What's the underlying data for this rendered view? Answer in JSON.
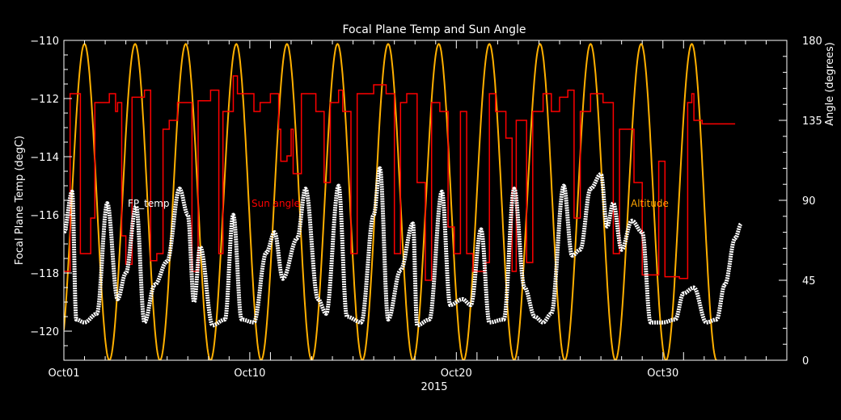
{
  "chart_data": {
    "type": "line",
    "title": "Focal Plane Temp and Sun Angle",
    "xlabel": "2015",
    "ylabel_left": "Focal Plane Temp (degC)",
    "ylabel_right": "Angle (degrees)",
    "x_range_days": [
      1,
      36
    ],
    "x_ticks": [
      {
        "day": 1,
        "label": "Oct01"
      },
      {
        "day": 10,
        "label": "Oct10"
      },
      {
        "day": 20,
        "label": "Oct20"
      },
      {
        "day": 30,
        "label": "Oct30"
      }
    ],
    "ylim_left": [
      -121,
      -110
    ],
    "yticks_left": [
      -110,
      -112,
      -114,
      -116,
      -118,
      -120
    ],
    "ylim_right": [
      0,
      180
    ],
    "yticks_right": [
      0,
      45,
      90,
      135,
      180
    ],
    "grid": false,
    "legend_labels": [
      {
        "text": "FP_temp",
        "color": "#ffffff"
      },
      {
        "text": "Sun angle",
        "color": "#ff0000"
      },
      {
        "text": "Altitude",
        "color": "#ffa500"
      }
    ],
    "colors": {
      "fp_temp": "#ffffff",
      "sun_angle": "#ff0000",
      "altitude": "#ffb000",
      "axes": "#ffffff",
      "background": "#000000"
    },
    "series": [
      {
        "name": "FP_temp",
        "axis": "left",
        "approximate_daily_extremes": [
          [
            1.0,
            -116.6
          ],
          [
            1.4,
            -115.2
          ],
          [
            1.6,
            -119.6
          ],
          [
            2.0,
            -119.7
          ],
          [
            2.6,
            -119.4
          ],
          [
            3.1,
            -115.6
          ],
          [
            3.6,
            -118.9
          ],
          [
            4.0,
            -118.0
          ],
          [
            4.5,
            -115.7
          ],
          [
            4.9,
            -119.7
          ],
          [
            5.4,
            -118.4
          ],
          [
            6.0,
            -117.6
          ],
          [
            6.6,
            -115.1
          ],
          [
            7.0,
            -116.0
          ],
          [
            7.3,
            -119.0
          ],
          [
            7.6,
            -117.1
          ],
          [
            8.2,
            -119.8
          ],
          [
            8.8,
            -119.6
          ],
          [
            9.2,
            -116.0
          ],
          [
            9.6,
            -119.6
          ],
          [
            10.2,
            -119.7
          ],
          [
            10.8,
            -117.3
          ],
          [
            11.2,
            -116.6
          ],
          [
            11.6,
            -118.2
          ],
          [
            12.3,
            -116.8
          ],
          [
            12.7,
            -115.1
          ],
          [
            13.3,
            -118.9
          ],
          [
            13.7,
            -119.4
          ],
          [
            14.3,
            -115.0
          ],
          [
            14.7,
            -119.5
          ],
          [
            15.4,
            -119.7
          ],
          [
            16.0,
            -116.0
          ],
          [
            16.3,
            -114.4
          ],
          [
            16.7,
            -119.6
          ],
          [
            17.3,
            -117.9
          ],
          [
            17.9,
            -116.3
          ],
          [
            18.1,
            -119.8
          ],
          [
            18.7,
            -119.6
          ],
          [
            19.3,
            -115.2
          ],
          [
            19.7,
            -119.1
          ],
          [
            20.3,
            -118.9
          ],
          [
            20.7,
            -119.1
          ],
          [
            21.2,
            -116.5
          ],
          [
            21.6,
            -119.7
          ],
          [
            22.3,
            -119.6
          ],
          [
            22.8,
            -115.1
          ],
          [
            23.3,
            -118.5
          ],
          [
            23.8,
            -119.5
          ],
          [
            24.2,
            -119.7
          ],
          [
            24.6,
            -119.4
          ],
          [
            25.2,
            -115.0
          ],
          [
            25.6,
            -117.4
          ],
          [
            26.0,
            -117.2
          ],
          [
            26.5,
            -115.1
          ],
          [
            27.0,
            -114.6
          ],
          [
            27.3,
            -116.4
          ],
          [
            27.6,
            -115.6
          ],
          [
            28.0,
            -117.2
          ],
          [
            28.5,
            -116.2
          ],
          [
            29.0,
            -116.6
          ],
          [
            29.4,
            -119.7
          ],
          [
            30.0,
            -119.7
          ],
          [
            30.6,
            -119.6
          ],
          [
            31.0,
            -118.7
          ],
          [
            31.5,
            -118.5
          ],
          [
            32.1,
            -119.7
          ],
          [
            32.6,
            -119.6
          ],
          [
            33.0,
            -118.4
          ],
          [
            33.5,
            -116.8
          ],
          [
            33.8,
            -116.3
          ]
        ]
      },
      {
        "name": "Sun angle",
        "axis": "right",
        "step_points": [
          [
            1.0,
            50
          ],
          [
            1.3,
            150
          ],
          [
            1.6,
            150
          ],
          [
            1.8,
            60
          ],
          [
            2.1,
            60
          ],
          [
            2.3,
            80
          ],
          [
            2.4,
            80
          ],
          [
            2.5,
            145
          ],
          [
            3.1,
            145
          ],
          [
            3.2,
            150
          ],
          [
            3.3,
            150
          ],
          [
            3.5,
            140
          ],
          [
            3.6,
            145
          ],
          [
            3.7,
            145
          ],
          [
            3.8,
            70
          ],
          [
            3.9,
            70
          ],
          [
            4.0,
            54
          ],
          [
            4.2,
            54
          ],
          [
            4.3,
            148
          ],
          [
            4.8,
            148
          ],
          [
            4.9,
            152
          ],
          [
            5.0,
            152
          ],
          [
            5.2,
            56
          ],
          [
            5.4,
            56
          ],
          [
            5.5,
            60
          ],
          [
            5.7,
            60
          ],
          [
            5.8,
            130
          ],
          [
            6.0,
            130
          ],
          [
            6.1,
            135
          ],
          [
            6.4,
            135
          ],
          [
            6.5,
            145
          ],
          [
            7.0,
            145
          ],
          [
            7.2,
            50
          ],
          [
            7.4,
            50
          ],
          [
            7.5,
            146
          ],
          [
            8.0,
            146
          ],
          [
            8.1,
            152
          ],
          [
            8.3,
            152
          ],
          [
            8.5,
            60
          ],
          [
            8.6,
            60
          ],
          [
            8.7,
            140
          ],
          [
            9.1,
            140
          ],
          [
            9.2,
            160
          ],
          [
            9.3,
            160
          ],
          [
            9.4,
            150
          ],
          [
            10.1,
            150
          ],
          [
            10.2,
            140
          ],
          [
            10.4,
            140
          ],
          [
            10.5,
            145
          ],
          [
            10.8,
            145
          ],
          [
            11.0,
            150
          ],
          [
            11.3,
            150
          ],
          [
            11.4,
            130
          ],
          [
            11.5,
            112
          ],
          [
            11.6,
            112
          ],
          [
            11.8,
            115
          ],
          [
            12.0,
            130
          ],
          [
            12.1,
            105
          ],
          [
            12.4,
            105
          ],
          [
            12.5,
            150
          ],
          [
            13.0,
            150
          ],
          [
            13.2,
            140
          ],
          [
            13.4,
            140
          ],
          [
            13.6,
            100
          ],
          [
            13.8,
            100
          ],
          [
            13.9,
            145
          ],
          [
            14.2,
            145
          ],
          [
            14.3,
            152
          ],
          [
            14.4,
            152
          ],
          [
            14.5,
            140
          ],
          [
            14.7,
            140
          ],
          [
            14.9,
            60
          ],
          [
            15.0,
            60
          ],
          [
            15.2,
            150
          ],
          [
            15.8,
            150
          ],
          [
            16.0,
            155
          ],
          [
            16.3,
            155
          ],
          [
            16.6,
            150
          ],
          [
            16.9,
            150
          ],
          [
            17.0,
            60
          ],
          [
            17.2,
            60
          ],
          [
            17.3,
            145
          ],
          [
            17.5,
            145
          ],
          [
            17.6,
            150
          ],
          [
            18.0,
            150
          ],
          [
            18.1,
            100
          ],
          [
            18.3,
            100
          ],
          [
            18.5,
            45
          ],
          [
            18.6,
            45
          ],
          [
            18.8,
            145
          ],
          [
            19.1,
            145
          ],
          [
            19.2,
            140
          ],
          [
            19.4,
            140
          ],
          [
            19.6,
            75
          ],
          [
            19.8,
            75
          ],
          [
            19.9,
            60
          ],
          [
            20.1,
            60
          ],
          [
            20.2,
            140
          ],
          [
            20.4,
            140
          ],
          [
            20.5,
            60
          ],
          [
            20.6,
            60
          ],
          [
            20.8,
            50
          ],
          [
            21.3,
            50
          ],
          [
            21.4,
            55
          ],
          [
            21.5,
            55
          ],
          [
            21.6,
            150
          ],
          [
            21.8,
            150
          ],
          [
            21.9,
            140
          ],
          [
            22.3,
            140
          ],
          [
            22.4,
            125
          ],
          [
            22.6,
            125
          ],
          [
            22.7,
            50
          ],
          [
            22.8,
            50
          ],
          [
            22.9,
            135
          ],
          [
            23.3,
            135
          ],
          [
            23.4,
            55
          ],
          [
            23.6,
            55
          ],
          [
            23.7,
            140
          ],
          [
            24.1,
            140
          ],
          [
            24.2,
            150
          ],
          [
            24.4,
            150
          ],
          [
            24.6,
            140
          ],
          [
            24.8,
            140
          ],
          [
            25.0,
            148
          ],
          [
            25.3,
            148
          ],
          [
            25.4,
            152
          ],
          [
            25.6,
            152
          ],
          [
            25.7,
            80
          ],
          [
            25.9,
            80
          ],
          [
            26.0,
            140
          ],
          [
            26.3,
            140
          ],
          [
            26.5,
            150
          ],
          [
            27.0,
            150
          ],
          [
            27.1,
            145
          ],
          [
            27.3,
            145
          ],
          [
            27.6,
            60
          ],
          [
            27.8,
            60
          ],
          [
            27.9,
            130
          ],
          [
            28.5,
            130
          ],
          [
            28.6,
            100
          ],
          [
            28.9,
            100
          ],
          [
            29.0,
            48
          ],
          [
            29.6,
            48
          ],
          [
            29.8,
            112
          ],
          [
            30.0,
            112
          ],
          [
            30.1,
            47
          ],
          [
            30.6,
            47
          ],
          [
            30.8,
            46
          ],
          [
            31.1,
            46
          ],
          [
            31.2,
            145
          ],
          [
            31.4,
            150
          ],
          [
            31.5,
            135
          ],
          [
            31.8,
            135
          ],
          [
            31.9,
            133
          ],
          [
            32.2,
            133
          ],
          [
            32.6,
            133
          ],
          [
            33.0,
            133
          ],
          [
            33.5,
            133
          ]
        ]
      },
      {
        "name": "Altitude",
        "axis": "right",
        "peaks_day": [
          2.0,
          4.45,
          6.9,
          9.35,
          11.8,
          14.25,
          16.7,
          19.15,
          21.6,
          24.05,
          26.5,
          28.95,
          31.4
        ],
        "troughs_day": [
          3.2,
          5.65,
          8.1,
          10.55,
          13.0,
          15.45,
          17.9,
          20.35,
          22.8,
          25.25,
          27.7,
          30.15,
          32.6
        ],
        "peak_value": 178,
        "trough_value": 0,
        "x_end": 33.9
      }
    ]
  }
}
